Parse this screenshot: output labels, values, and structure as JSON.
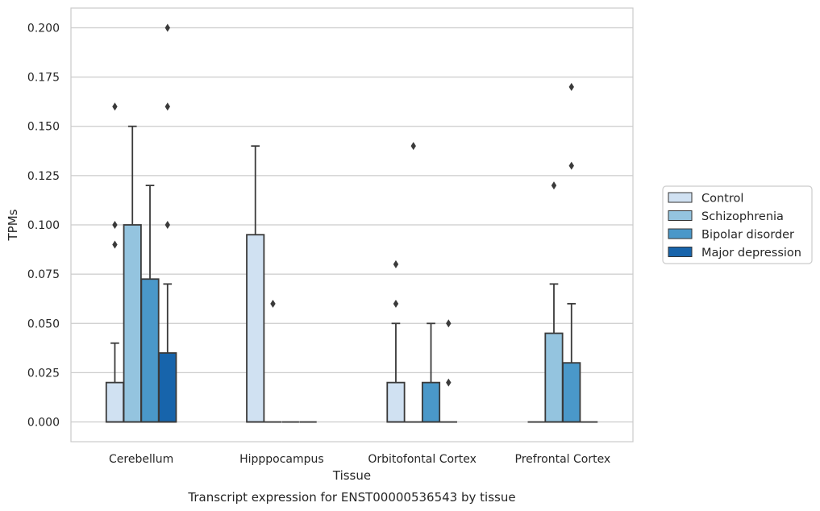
{
  "chart_data": {
    "type": "boxplot",
    "title": "",
    "caption": "Transcript expression for ENST00000536543 by tissue",
    "xlabel": "Tissue",
    "ylabel": "TPMs",
    "ylim": [
      -0.01,
      0.21
    ],
    "yticks": [
      0.0,
      0.025,
      0.05,
      0.075,
      0.1,
      0.125,
      0.15,
      0.175,
      0.2
    ],
    "ytick_labels": [
      "0.000",
      "0.025",
      "0.050",
      "0.075",
      "0.100",
      "0.125",
      "0.150",
      "0.175",
      "0.200"
    ],
    "grid": "horizontal",
    "legend_position": "right",
    "categories": [
      "Cerebellum",
      "Hipppocampus",
      "Orbitofontal Cortex",
      "Prefrontal Cortex"
    ],
    "series": [
      {
        "name": "Control",
        "color": "#d0e1f2",
        "boxes": [
          {
            "q1": 0.0,
            "median": 0.0,
            "q3": 0.02,
            "whisker_low": 0.0,
            "whisker_high": 0.04,
            "outliers": [
              0.09,
              0.1,
              0.16
            ]
          },
          {
            "q1": 0.0,
            "median": 0.0,
            "q3": 0.095,
            "whisker_low": 0.0,
            "whisker_high": 0.14,
            "outliers": []
          },
          {
            "q1": 0.0,
            "median": 0.0,
            "q3": 0.02,
            "whisker_low": 0.0,
            "whisker_high": 0.05,
            "outliers": [
              0.06,
              0.08
            ]
          },
          {
            "q1": 0.0,
            "median": 0.0,
            "q3": 0.0,
            "whisker_low": 0.0,
            "whisker_high": 0.0,
            "outliers": []
          }
        ]
      },
      {
        "name": "Schizophrenia",
        "color": "#94c4df",
        "boxes": [
          {
            "q1": 0.0,
            "median": 0.0,
            "q3": 0.1,
            "whisker_low": 0.0,
            "whisker_high": 0.15,
            "outliers": []
          },
          {
            "q1": 0.0,
            "median": 0.0,
            "q3": 0.0,
            "whisker_low": 0.0,
            "whisker_high": 0.0,
            "outliers": [
              0.06
            ]
          },
          {
            "q1": 0.0,
            "median": 0.0,
            "q3": 0.0,
            "whisker_low": 0.0,
            "whisker_high": 0.0,
            "outliers": [
              0.14
            ]
          },
          {
            "q1": 0.0,
            "median": 0.0,
            "q3": 0.045,
            "whisker_low": 0.0,
            "whisker_high": 0.07,
            "outliers": [
              0.12
            ]
          }
        ]
      },
      {
        "name": "Bipolar disorder",
        "color": "#4a98c9",
        "boxes": [
          {
            "q1": 0.0,
            "median": 0.0,
            "q3": 0.0725,
            "whisker_low": 0.0,
            "whisker_high": 0.12,
            "outliers": []
          },
          {
            "q1": 0.0,
            "median": 0.0,
            "q3": 0.0,
            "whisker_low": 0.0,
            "whisker_high": 0.0,
            "outliers": []
          },
          {
            "q1": 0.0,
            "median": 0.0,
            "q3": 0.02,
            "whisker_low": 0.0,
            "whisker_high": 0.05,
            "outliers": []
          },
          {
            "q1": 0.0,
            "median": 0.0,
            "q3": 0.03,
            "whisker_low": 0.0,
            "whisker_high": 0.06,
            "outliers": [
              0.13,
              0.17
            ]
          }
        ]
      },
      {
        "name": "Major depression",
        "color": "#1764ab",
        "boxes": [
          {
            "q1": 0.0,
            "median": 0.0,
            "q3": 0.035,
            "whisker_low": 0.0,
            "whisker_high": 0.07,
            "outliers": [
              0.1,
              0.16,
              0.2
            ]
          },
          {
            "q1": 0.0,
            "median": 0.0,
            "q3": 0.0,
            "whisker_low": 0.0,
            "whisker_high": 0.0,
            "outliers": []
          },
          {
            "q1": 0.0,
            "median": 0.0,
            "q3": 0.0,
            "whisker_low": 0.0,
            "whisker_high": 0.0,
            "outliers": [
              0.02,
              0.05
            ]
          },
          {
            "q1": 0.0,
            "median": 0.0,
            "q3": 0.0,
            "whisker_low": 0.0,
            "whisker_high": 0.0,
            "outliers": []
          }
        ]
      }
    ]
  }
}
